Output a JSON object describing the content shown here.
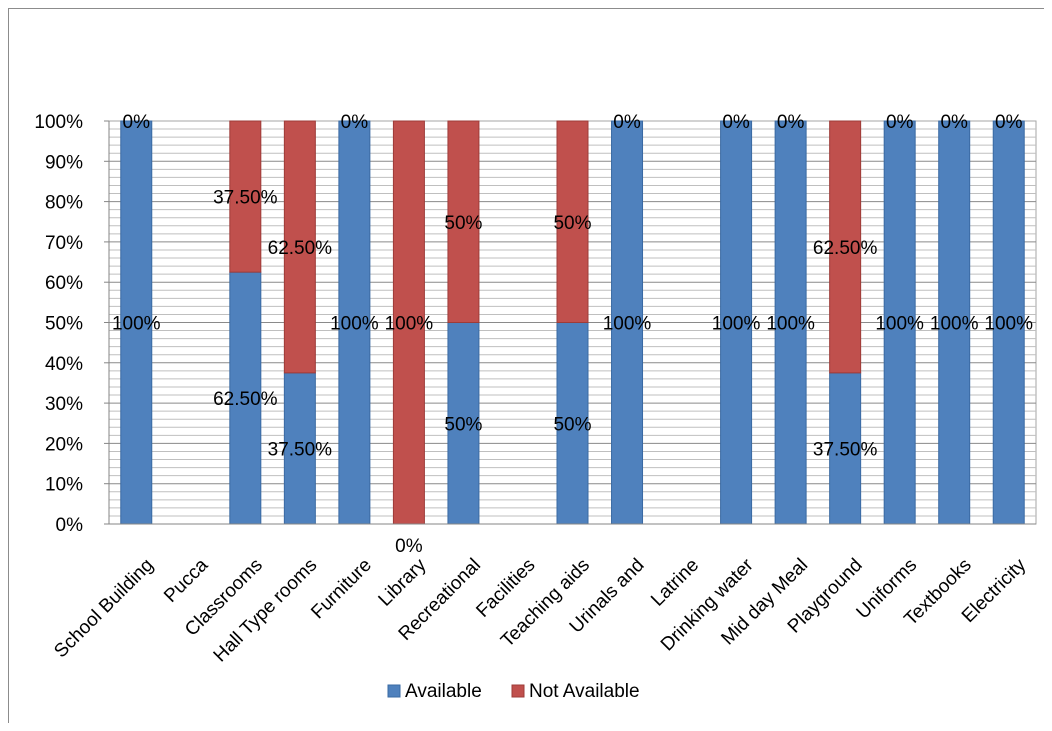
{
  "chart_data": {
    "type": "bar",
    "stacked": true,
    "percent_stacked": true,
    "categories": [
      "School Building",
      "Pucca",
      "Classrooms",
      "Hall Type rooms",
      "Furniture",
      "Library",
      "Recreational",
      "Facilities",
      "Teaching aids",
      "Urinals and",
      "Latrine",
      "Drinking water",
      "Mid day Meal",
      "Playground",
      "Uniforms",
      "Textbooks",
      "Electricity"
    ],
    "series": [
      {
        "name": "Available",
        "color": "#4f81bd",
        "values": [
          100,
          null,
          62.5,
          37.5,
          100,
          0,
          50,
          null,
          50,
          100,
          null,
          100,
          100,
          37.5,
          100,
          100,
          100
        ],
        "labels": [
          "100%",
          "",
          "62.50%",
          "37.50%",
          "100%",
          "0%",
          "50%",
          "",
          "50%",
          "100%",
          "",
          "100%",
          "100%",
          "37.50%",
          "100%",
          "100%",
          "100%"
        ]
      },
      {
        "name": "Not Available",
        "color": "#c0504d",
        "values": [
          0,
          null,
          37.5,
          62.5,
          0,
          100,
          50,
          null,
          50,
          0,
          null,
          0,
          0,
          62.5,
          0,
          0,
          0
        ],
        "labels": [
          "0%",
          "",
          "37.50%",
          "62.50%",
          "0%",
          "100%",
          "50%",
          "",
          "50%",
          "0%",
          "",
          "0%",
          "0%",
          "62.50%",
          "0%",
          "0%",
          "0%"
        ]
      }
    ],
    "yticks": [
      "0%",
      "10%",
      "20%",
      "30%",
      "40%",
      "50%",
      "60%",
      "70%",
      "80%",
      "90%",
      "100%"
    ],
    "ylim": [
      0,
      100
    ],
    "grid": true,
    "legend": "bottom",
    "title": "",
    "xlabel": "",
    "ylabel": ""
  }
}
